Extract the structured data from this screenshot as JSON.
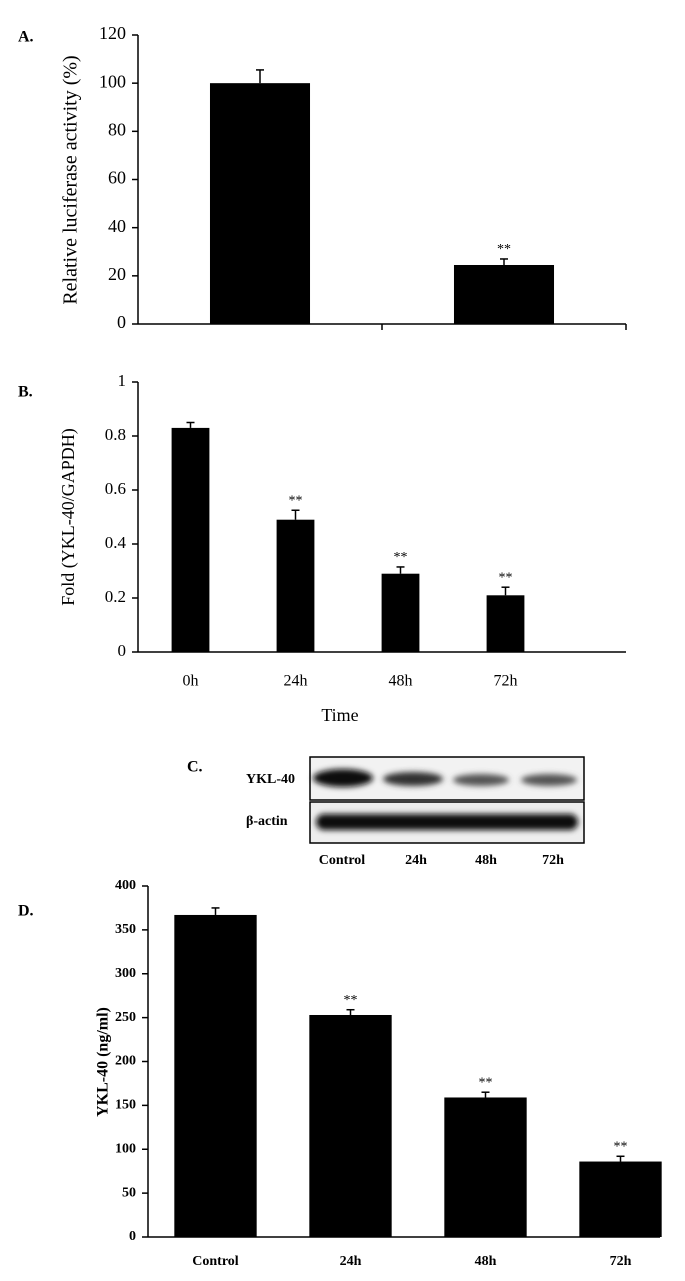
{
  "chart_data": [
    {
      "type": "bar",
      "panel_label": "A.",
      "y_label": "Relative luciferase activity (%)",
      "categories": [
        null,
        null
      ],
      "values": [
        100,
        24.5
      ],
      "errors": [
        5.5,
        2.5
      ],
      "significance": [
        null,
        "**"
      ],
      "color": "#000000",
      "ylim": [
        0,
        120
      ],
      "yticks": [
        0,
        20,
        40,
        60,
        80,
        100,
        120
      ]
    },
    {
      "type": "bar",
      "panel_label": "B.",
      "y_label": "Fold (YKL-40/GAPDH)",
      "x_label": "Time",
      "categories": [
        "0h",
        "24h",
        "48h",
        "72h"
      ],
      "values": [
        0.83,
        0.49,
        0.29,
        0.21
      ],
      "errors": [
        0.02,
        0.035,
        0.025,
        0.03
      ],
      "significance": [
        null,
        "**",
        "**",
        "**"
      ],
      "color": "#000000",
      "ylim": [
        0,
        1
      ],
      "yticks": [
        0,
        0.2,
        0.4,
        0.6,
        0.8,
        1
      ]
    },
    {
      "type": "bar",
      "panel_label": "D.",
      "y_label": "YKL-40 (ng/ml)",
      "categories": [
        "Control",
        "24h",
        "48h",
        "72h"
      ],
      "values": [
        367,
        253,
        159,
        86
      ],
      "errors": [
        8,
        6,
        6,
        6
      ],
      "significance": [
        null,
        "**",
        "**",
        "**"
      ],
      "color": "#000000",
      "ylim": [
        0,
        400
      ],
      "yticks": [
        0,
        50,
        100,
        150,
        200,
        250,
        300,
        350,
        400
      ]
    }
  ],
  "blot": {
    "panel_label": "C.",
    "rows": [
      "YKL-40",
      "β-actin"
    ],
    "lanes": [
      "Control",
      "24h",
      "48h",
      "72h"
    ]
  }
}
